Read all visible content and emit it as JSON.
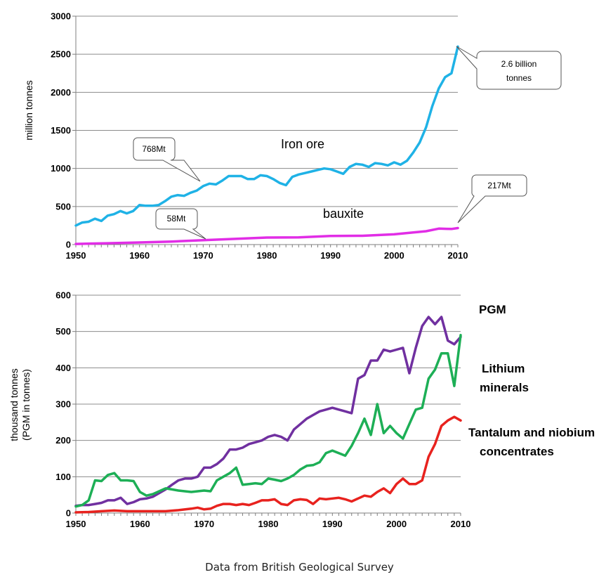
{
  "source_note": "Data from British Geological Survey",
  "chart_data": [
    {
      "type": "line",
      "ylabel": "million tonnes",
      "xlim": [
        1950,
        2010
      ],
      "ylim": [
        0,
        3000
      ],
      "x_ticks": [
        "1950",
        "1960",
        "1970",
        "1980",
        "1990",
        "2000",
        "2010"
      ],
      "y_ticks": [
        "0",
        "500",
        "1000",
        "1500",
        "2000",
        "2500",
        "3000"
      ],
      "grid": true,
      "series": [
        {
          "name": "Iron ore",
          "color": "#1FB2E6",
          "x": [
            1950,
            1951,
            1952,
            1953,
            1954,
            1955,
            1956,
            1957,
            1958,
            1959,
            1960,
            1961,
            1962,
            1963,
            1964,
            1965,
            1966,
            1967,
            1968,
            1969,
            1970,
            1971,
            1972,
            1973,
            1974,
            1975,
            1976,
            1977,
            1978,
            1979,
            1980,
            1981,
            1982,
            1983,
            1984,
            1985,
            1986,
            1987,
            1988,
            1989,
            1990,
            1991,
            1992,
            1993,
            1994,
            1995,
            1996,
            1997,
            1998,
            1999,
            2000,
            2001,
            2002,
            2003,
            2004,
            2005,
            2006,
            2007,
            2008,
            2009,
            2010
          ],
          "values": [
            250,
            290,
            300,
            340,
            310,
            380,
            400,
            440,
            410,
            440,
            520,
            510,
            510,
            520,
            570,
            630,
            650,
            640,
            680,
            710,
            768,
            800,
            790,
            840,
            900,
            900,
            900,
            860,
            860,
            910,
            900,
            860,
            810,
            780,
            890,
            920,
            940,
            960,
            980,
            1000,
            990,
            960,
            930,
            1020,
            1060,
            1050,
            1020,
            1070,
            1060,
            1040,
            1080,
            1050,
            1100,
            1210,
            1340,
            1540,
            1820,
            2050,
            2200,
            2250,
            2600
          ]
        },
        {
          "name": "bauxite",
          "color": "#E12DE6",
          "x": [
            1950,
            1955,
            1960,
            1965,
            1970,
            1975,
            1980,
            1985,
            1990,
            1995,
            2000,
            2005,
            2007,
            2009,
            2010
          ],
          "values": [
            8,
            18,
            28,
            40,
            58,
            75,
            92,
            95,
            113,
            115,
            135,
            175,
            210,
            205,
            217
          ]
        }
      ],
      "annotations": [
        "768Mt",
        "58Mt",
        "2.6 billion tonnes",
        "217Mt"
      ]
    },
    {
      "type": "line",
      "ylabel": "thousand tonnes (PGM in tonnes)",
      "xlim": [
        1950,
        2010
      ],
      "ylim": [
        0,
        600
      ],
      "x_ticks": [
        "1950",
        "1960",
        "1970",
        "1980",
        "1990",
        "2000",
        "2010"
      ],
      "y_ticks": [
        "0",
        "100",
        "200",
        "300",
        "400",
        "500",
        "600"
      ],
      "grid": true,
      "series": [
        {
          "name": "PGM",
          "color": "#7030A0",
          "x": [
            1950,
            1951,
            1952,
            1953,
            1954,
            1955,
            1956,
            1957,
            1958,
            1959,
            1960,
            1961,
            1962,
            1963,
            1964,
            1965,
            1966,
            1967,
            1968,
            1969,
            1970,
            1971,
            1972,
            1973,
            1974,
            1975,
            1976,
            1977,
            1978,
            1979,
            1980,
            1981,
            1982,
            1983,
            1984,
            1985,
            1986,
            1987,
            1988,
            1989,
            1990,
            1991,
            1992,
            1993,
            1994,
            1995,
            1996,
            1997,
            1998,
            1999,
            2000,
            2001,
            2002,
            2003,
            2004,
            2005,
            2006,
            2007,
            2008,
            2009,
            2010
          ],
          "values": [
            20,
            22,
            22,
            25,
            28,
            35,
            35,
            42,
            25,
            30,
            38,
            40,
            45,
            55,
            65,
            78,
            90,
            95,
            95,
            100,
            125,
            125,
            135,
            150,
            175,
            175,
            180,
            190,
            195,
            200,
            210,
            215,
            210,
            200,
            230,
            245,
            260,
            270,
            280,
            285,
            290,
            285,
            280,
            275,
            370,
            380,
            420,
            420,
            450,
            445,
            450,
            455,
            385,
            455,
            515,
            540,
            520,
            540,
            475,
            465,
            485
          ]
        },
        {
          "name": "Lithium minerals",
          "color": "#1DAF56",
          "x": [
            1950,
            1951,
            1952,
            1953,
            1954,
            1955,
            1956,
            1957,
            1958,
            1959,
            1960,
            1961,
            1962,
            1963,
            1964,
            1965,
            1966,
            1967,
            1968,
            1969,
            1970,
            1971,
            1972,
            1973,
            1974,
            1975,
            1976,
            1977,
            1978,
            1979,
            1980,
            1981,
            1982,
            1983,
            1984,
            1985,
            1986,
            1987,
            1988,
            1989,
            1990,
            1991,
            1992,
            1993,
            1994,
            1995,
            1996,
            1997,
            1998,
            1999,
            2000,
            2001,
            2002,
            2003,
            2004,
            2005,
            2006,
            2007,
            2008,
            2009,
            2010
          ],
          "values": [
            18,
            22,
            35,
            90,
            88,
            105,
            110,
            90,
            90,
            88,
            58,
            48,
            52,
            60,
            68,
            65,
            62,
            60,
            58,
            60,
            62,
            60,
            90,
            100,
            110,
            125,
            78,
            80,
            82,
            80,
            95,
            92,
            88,
            95,
            105,
            120,
            130,
            132,
            140,
            165,
            172,
            165,
            158,
            185,
            220,
            260,
            215,
            300,
            220,
            240,
            220,
            205,
            245,
            285,
            290,
            370,
            395,
            440,
            440,
            350,
            490
          ]
        },
        {
          "name": "Tantalum and niobium concentrates",
          "color": "#E8221E",
          "x": [
            1950,
            1952,
            1954,
            1956,
            1958,
            1960,
            1962,
            1964,
            1966,
            1968,
            1969,
            1970,
            1971,
            1972,
            1973,
            1974,
            1975,
            1976,
            1977,
            1978,
            1979,
            1980,
            1981,
            1982,
            1983,
            1984,
            1985,
            1986,
            1987,
            1988,
            1989,
            1990,
            1991,
            1992,
            1993,
            1994,
            1995,
            1996,
            1997,
            1998,
            1999,
            2000,
            2001,
            2002,
            2003,
            2004,
            2005,
            2006,
            2007,
            2008,
            2009,
            2010
          ],
          "values": [
            2,
            3,
            5,
            7,
            5,
            5,
            5,
            5,
            8,
            12,
            15,
            10,
            12,
            20,
            25,
            25,
            22,
            25,
            22,
            28,
            35,
            35,
            38,
            25,
            22,
            35,
            38,
            36,
            25,
            40,
            38,
            40,
            42,
            38,
            32,
            40,
            48,
            45,
            58,
            68,
            55,
            80,
            95,
            80,
            80,
            90,
            155,
            190,
            240,
            255,
            265,
            255
          ]
        }
      ],
      "annotations": [
        "PGM",
        "Lithium minerals",
        "Tantalum and niobium concentrates"
      ]
    }
  ],
  "labels": {
    "iron_ore": "Iron ore",
    "bauxite": "bauxite",
    "iron_ore_callout": "768Mt",
    "bauxite_callout": "58Mt",
    "iron_ore_2010_line1": "2.6 billion",
    "iron_ore_2010_line2": "tonnes",
    "bauxite_2010_callout": "217Mt",
    "pgm": "PGM",
    "lithium_line1": "Lithium",
    "lithium_line2": "minerals",
    "tantalum_line1": "Tantalum and niobium",
    "tantalum_line2": "concentrates",
    "top_ylabel": "million tonnes",
    "bottom_ylabel_line1": "thousand tonnes",
    "bottom_ylabel_line2": "(PGM in tonnes)"
  }
}
